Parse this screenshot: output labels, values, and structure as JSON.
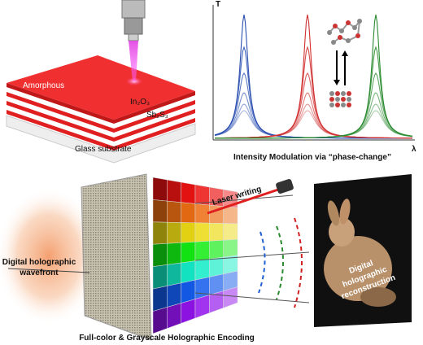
{
  "top_left": {
    "layer_label": "Amorphous",
    "layer_in2o3": "In₂O₃",
    "layer_sb2s3": "Sb₂S₃",
    "substrate": "Glass substrate"
  },
  "top_right": {
    "y_axis": "T",
    "x_axis": "λ",
    "caption": "Intensity Modulation via “phase-change”"
  },
  "bottom": {
    "laser": "Laser writing",
    "wavefront": [
      "Digital holographic",
      "wavefront"
    ],
    "reconstruction": [
      "Digital",
      "holographic",
      "reconstruction"
    ],
    "caption": "Full-color & Grayscale Holographic Encoding"
  }
}
